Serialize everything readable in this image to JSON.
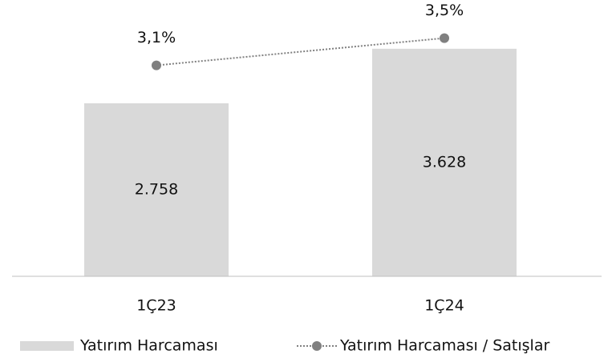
{
  "chart_data": {
    "type": "bar-line",
    "categories": [
      "1Ç23",
      "1Ç24"
    ],
    "series": [
      {
        "name": "Yatırım Harcaması",
        "type": "bar",
        "color": "#d9d9d9",
        "values": [
          2758,
          3628
        ],
        "value_labels": [
          "2.758",
          "3.628"
        ]
      },
      {
        "name": "Yatırım Harcaması / Satışlar",
        "type": "line",
        "axis": "y2",
        "color": "#808080",
        "values": [
          3.1,
          3.5
        ],
        "value_labels": [
          "3,1%",
          "3,5%"
        ]
      }
    ],
    "ylim": [
      0,
      4405
    ],
    "y2lim": [
      0,
      4.06
    ],
    "legend": "bottom"
  }
}
